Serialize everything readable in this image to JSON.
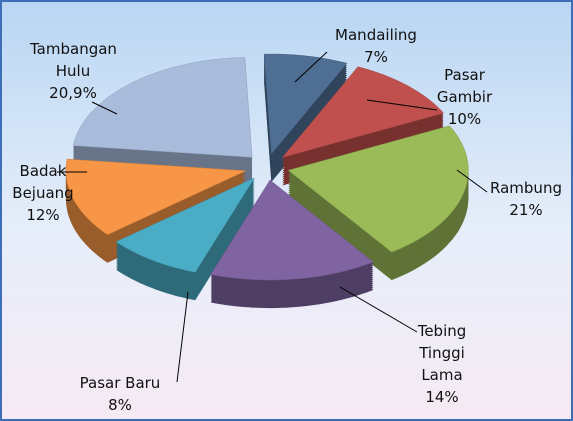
{
  "chart_data": {
    "type": "pie",
    "categories": [
      "Mandailing",
      "Pasar Gambir",
      "Rambung",
      "Tebing Tinggi Lama",
      "Pasar Baru",
      "Badak Bejuang",
      "Tambangan Hulu"
    ],
    "values": [
      7,
      10,
      21,
      14,
      8,
      12,
      20.9
    ],
    "value_labels": [
      "7%",
      "10%",
      "21%",
      "14%",
      "8%",
      "12%",
      "20,9%"
    ],
    "colors": [
      "#4f6e93",
      "#c0504d",
      "#9bbb59",
      "#8064a2",
      "#4bacc6",
      "#f79646",
      "#a9bcdc"
    ]
  }
}
